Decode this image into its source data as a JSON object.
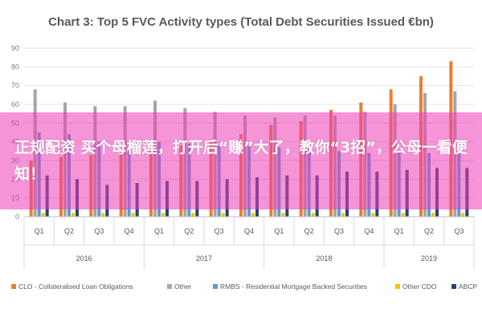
{
  "chart_data": {
    "type": "bar",
    "title": "Chart 3: Top 5 FVC Activity types (Total Debt Securities Issued €bn)",
    "yticks": [
      "0",
      "10",
      "20",
      "30",
      "40",
      "50",
      "60",
      "70",
      "80",
      "90"
    ],
    "ylim": [
      0,
      90
    ],
    "grid": true,
    "legend_position": "bottom",
    "categories": [
      "Q1",
      "Q2",
      "Q3",
      "Q4",
      "Q1",
      "Q2",
      "Q3",
      "Q4",
      "Q1",
      "Q2",
      "Q3",
      "Q4",
      "Q1",
      "Q2",
      "Q3"
    ],
    "years": [
      {
        "label": "2016",
        "span": 4
      },
      {
        "label": "2017",
        "span": 4
      },
      {
        "label": "2018",
        "span": 4
      },
      {
        "label": "2019",
        "span": 3
      }
    ],
    "series": [
      {
        "name": "CLO - Collateralised Loan Obligations",
        "color": "#ed7d31",
        "values": [
          30,
          32,
          33,
          35,
          37,
          38,
          40,
          44,
          49,
          51,
          57,
          61,
          68,
          75,
          83
        ]
      },
      {
        "name": "Other",
        "color": "#a5a5a5",
        "values": [
          68,
          61,
          59,
          59,
          62,
          58,
          56,
          54,
          53,
          54,
          54,
          56,
          60,
          66,
          67
        ]
      },
      {
        "name": "RMBS - Residential Mortgage Backed Securities",
        "color": "#5b9bd5",
        "values": [
          45,
          44,
          40,
          40,
          40,
          39,
          38,
          38,
          37,
          36,
          35,
          34,
          35,
          34,
          34
        ]
      },
      {
        "name": "Other CDO",
        "color": "#ffc000",
        "values": [
          2,
          2,
          2,
          2,
          2,
          2,
          2,
          2,
          2,
          2,
          2,
          2,
          2,
          2,
          2
        ]
      },
      {
        "name": "ABCP",
        "color": "#264478",
        "values": [
          22,
          20,
          17,
          18,
          19,
          19,
          20,
          21,
          22,
          22,
          24,
          24,
          25,
          26,
          26
        ]
      }
    ]
  },
  "overlay": {
    "text": "正规配资 买个母榴莲，打开后“赚”大了，教你“3招”，公母一看便知！"
  }
}
